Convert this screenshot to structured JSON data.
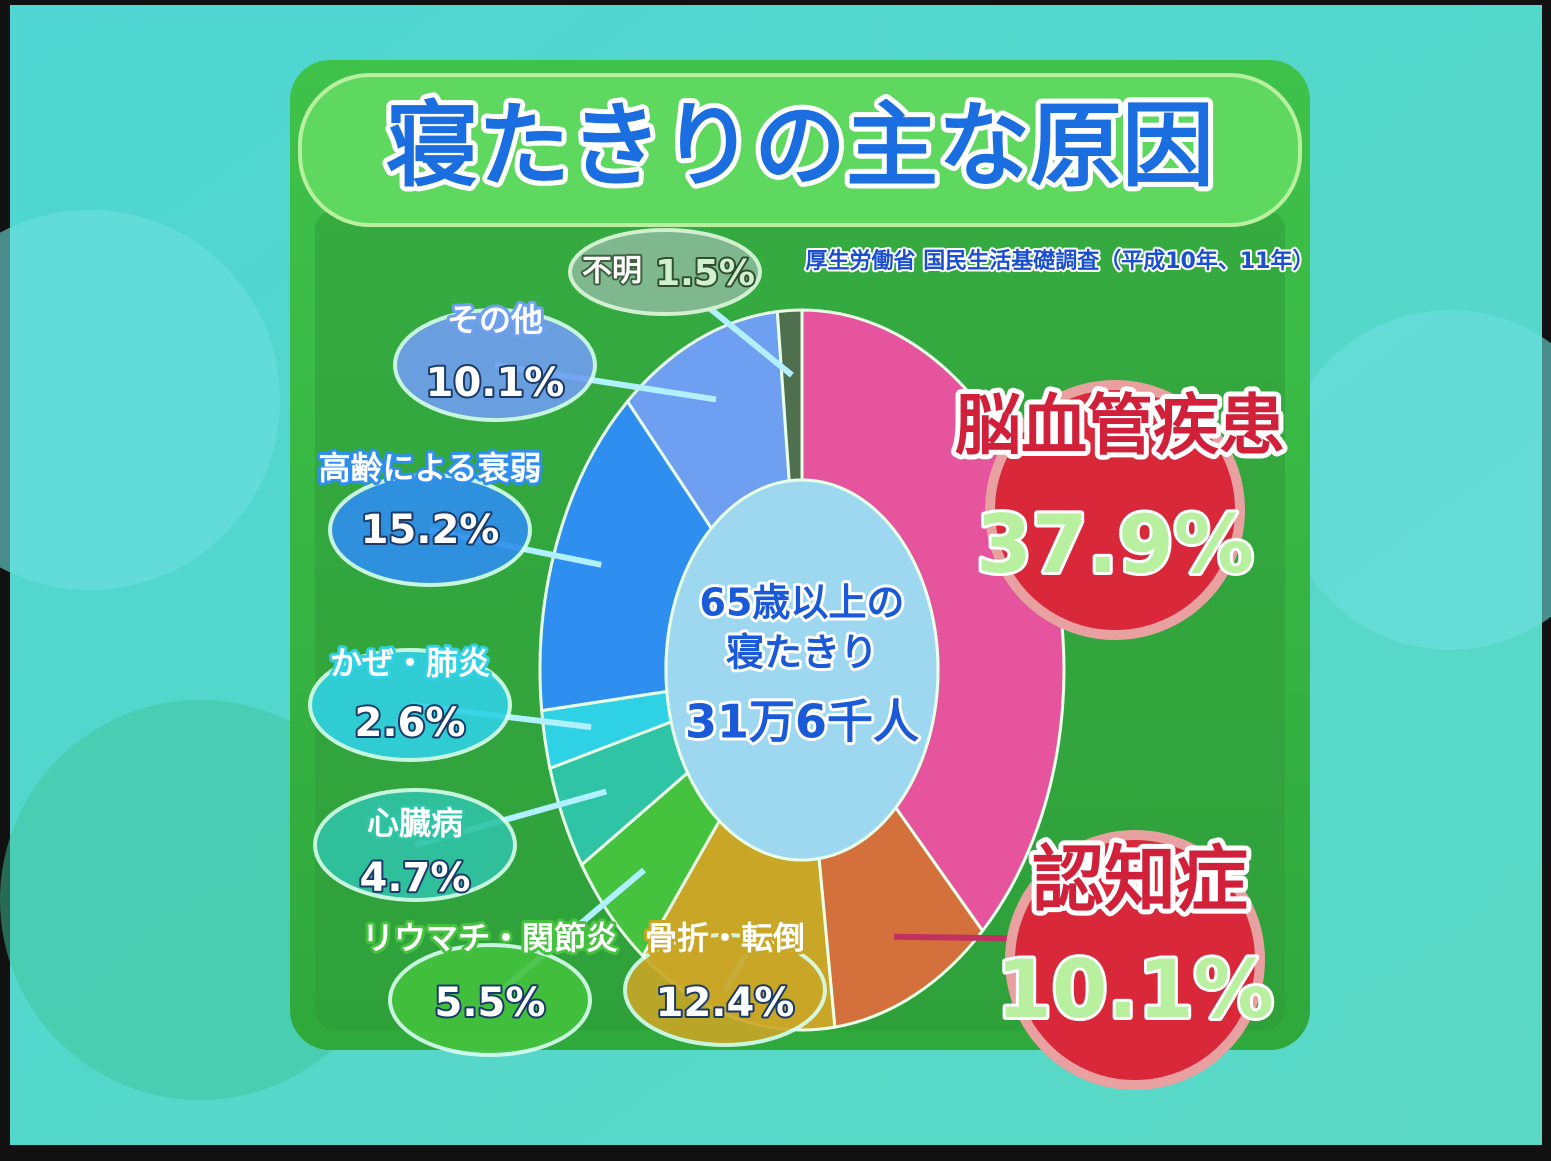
{
  "chart_data": {
    "type": "pie",
    "title": "寝たきりの主な原因",
    "source": "厚生労働省 国民生活基礎調査（平成10年、11年）",
    "center_text": [
      "65歳以上の",
      "寝たきり",
      "31万6千人"
    ],
    "categories": [
      "脳血管疾患",
      "認知症",
      "骨折・転倒",
      "リウマチ・関節炎",
      "心臓病",
      "かぜ・肺炎",
      "高齢による衰弱",
      "その他",
      "不明"
    ],
    "values": [
      37.9,
      10.1,
      12.4,
      5.5,
      4.7,
      2.6,
      15.2,
      10.1,
      1.5
    ],
    "value_labels": [
      "37.9%",
      "10.1%",
      "12.4%",
      "5.5%",
      "4.7%",
      "2.6%",
      "15.2%",
      "10.1%",
      "1.5%"
    ],
    "colors": [
      "#e6549e",
      "#d4703c",
      "#c9a626",
      "#45c23e",
      "#2fc4a6",
      "#2fd2e4",
      "#2f8ff0",
      "#6f9ff0",
      "#4f6f4f"
    ]
  }
}
